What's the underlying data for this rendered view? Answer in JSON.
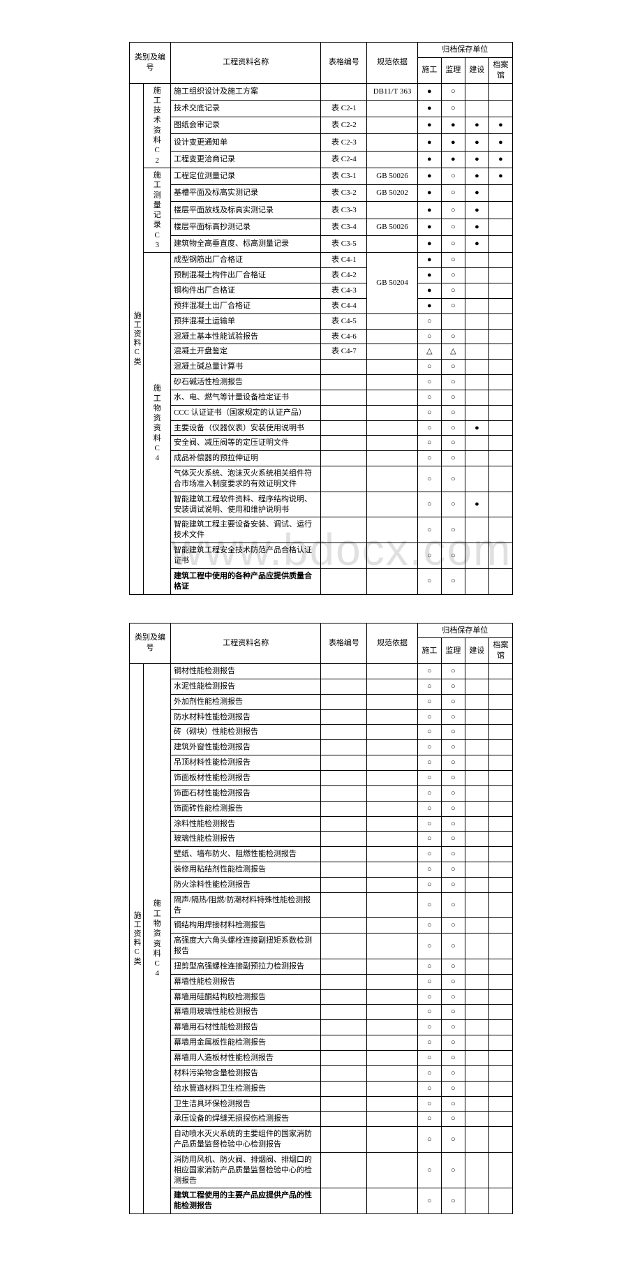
{
  "watermark": "www.bdocx.com",
  "marks": {
    "filled": "●",
    "hollow": "○",
    "tri": "△"
  },
  "headers": {
    "cat": "类别及编号",
    "name": "工程资料名称",
    "form": "表格编号",
    "basis": "规范依据",
    "archiveGroup": "归档保存单位",
    "units": [
      "施工",
      "监理",
      "建设",
      "档案馆"
    ]
  },
  "table1": {
    "mainCat": "施工资料C类",
    "groups": [
      {
        "side": "施工技术资料C2",
        "rows": [
          {
            "name": "施工组织设计及施工方案",
            "form": "",
            "basis": "DB11/T 363",
            "m": [
              "●",
              "○",
              "",
              ""
            ]
          },
          {
            "name": "技术交底记录",
            "form": "表 C2-1",
            "basis": "",
            "m": [
              "●",
              "○",
              "",
              ""
            ]
          },
          {
            "name": "图纸会审记录",
            "form": "表 C2-2",
            "basis": "",
            "m": [
              "●",
              "●",
              "●",
              "●"
            ]
          },
          {
            "name": "设计变更通知单",
            "form": "表 C2-3",
            "basis": "",
            "m": [
              "●",
              "●",
              "●",
              "●"
            ]
          },
          {
            "name": "工程变更洽商记录",
            "form": "表 C2-4",
            "basis": "",
            "m": [
              "●",
              "●",
              "●",
              "●"
            ]
          }
        ]
      },
      {
        "side": "施工测量记录C3",
        "rows": [
          {
            "name": "工程定位测量记录",
            "form": "表 C3-1",
            "basis": "GB 50026",
            "m": [
              "●",
              "○",
              "●",
              "●"
            ]
          },
          {
            "name": "基槽平面及标高实测记录",
            "form": "表 C3-2",
            "basis": "GB 50202",
            "m": [
              "●",
              "○",
              "●",
              ""
            ]
          },
          {
            "name": "楼层平面放线及标高实测记录",
            "form": "表 C3-3",
            "basis": "",
            "m": [
              "●",
              "○",
              "●",
              ""
            ]
          },
          {
            "name": "楼层平面标高抄测记录",
            "form": "表 C3-4",
            "basis": "GB 50026",
            "m": [
              "●",
              "○",
              "●",
              ""
            ]
          },
          {
            "name": "建筑物全高垂直度、标高测量记录",
            "form": "表 C3-5",
            "basis": "",
            "m": [
              "●",
              "○",
              "●",
              ""
            ]
          }
        ]
      },
      {
        "side": "施工物资资料C4",
        "rows": [
          {
            "name": "成型钢筋出厂合格证",
            "form": "表 C4-1",
            "basis": "",
            "basisSpan": 4,
            "basisVal": "GB 50204",
            "m": [
              "●",
              "○",
              "",
              ""
            ]
          },
          {
            "name": "预制混凝土构件出厂合格证",
            "form": "表 C4-2",
            "m": [
              "●",
              "○",
              "",
              ""
            ]
          },
          {
            "name": "钢构件出厂合格证",
            "form": "表 C4-3",
            "m": [
              "●",
              "○",
              "",
              ""
            ]
          },
          {
            "name": "预拌混凝土出厂合格证",
            "form": "表 C4-4",
            "m": [
              "●",
              "○",
              "",
              ""
            ]
          },
          {
            "name": "预拌混凝土运输单",
            "form": "表 C4-5",
            "basis": "",
            "m": [
              "○",
              "",
              "",
              ""
            ]
          },
          {
            "name": "混凝土基本性能试验报告",
            "form": "表 C4-6",
            "basis": "",
            "m": [
              "○",
              "○",
              "",
              ""
            ]
          },
          {
            "name": "混凝土开盘鉴定",
            "form": "表 C4-7",
            "basis": "",
            "m": [
              "△",
              "△",
              "",
              ""
            ]
          },
          {
            "name": "混凝土碱总量计算书",
            "form": "",
            "basis": "",
            "m": [
              "○",
              "○",
              "",
              ""
            ]
          },
          {
            "name": "砂石碱活性检测报告",
            "form": "",
            "basis": "",
            "m": [
              "○",
              "○",
              "",
              ""
            ]
          },
          {
            "name": "水、电、燃气等计量设备检定证书",
            "form": "",
            "basis": "",
            "m": [
              "○",
              "○",
              "",
              ""
            ]
          },
          {
            "name": "CCC 认证证书（国家规定的认证产品）",
            "form": "",
            "basis": "",
            "m": [
              "○",
              "○",
              "",
              ""
            ]
          },
          {
            "name": "主要设备（仪器仪表）安装使用说明书",
            "form": "",
            "basis": "",
            "m": [
              "○",
              "○",
              "●",
              ""
            ]
          },
          {
            "name": "安全阀、减压阀等的定压证明文件",
            "form": "",
            "basis": "",
            "m": [
              "○",
              "○",
              "",
              ""
            ]
          },
          {
            "name": "成品补偿器的预拉伸证明",
            "form": "",
            "basis": "",
            "m": [
              "○",
              "○",
              "",
              ""
            ]
          },
          {
            "name": "气体灭火系统、泡沫灭火系统相关组件符合市场准入制度要求的有效证明文件",
            "form": "",
            "basis": "",
            "m": [
              "○",
              "○",
              "",
              ""
            ]
          },
          {
            "name": "智能建筑工程软件资料、程序结构说明、安装调试说明、使用和维护说明书",
            "form": "",
            "basis": "",
            "m": [
              "○",
              "○",
              "●",
              ""
            ]
          },
          {
            "name": "智能建筑工程主要设备安装、调试、运行技术文件",
            "form": "",
            "basis": "",
            "m": [
              "○",
              "○",
              "",
              ""
            ]
          },
          {
            "name": "智能建筑工程安全技术防范产品合格认证证书",
            "form": "",
            "basis": "",
            "m": [
              "○",
              "○",
              "",
              ""
            ]
          },
          {
            "name": "建筑工程中使用的各种产品应提供质量合格证",
            "bold": true,
            "form": "",
            "basis": "",
            "m": [
              "○",
              "○",
              "",
              ""
            ]
          }
        ]
      }
    ]
  },
  "table2": {
    "mainCat": "施工资料C类",
    "side": "施工物资资料C4",
    "rows": [
      {
        "name": "钢材性能检测报告",
        "m": [
          "○",
          "○",
          "",
          ""
        ]
      },
      {
        "name": "水泥性能检测报告",
        "m": [
          "○",
          "○",
          "",
          ""
        ]
      },
      {
        "name": "外加剂性能检测报告",
        "m": [
          "○",
          "○",
          "",
          ""
        ]
      },
      {
        "name": "防水材料性能检测报告",
        "m": [
          "○",
          "○",
          "",
          ""
        ]
      },
      {
        "name": "砖（砌块）性能检测报告",
        "m": [
          "○",
          "○",
          "",
          ""
        ]
      },
      {
        "name": "建筑外窗性能检测报告",
        "m": [
          "○",
          "○",
          "",
          ""
        ]
      },
      {
        "name": "吊顶材料性能检测报告",
        "m": [
          "○",
          "○",
          "",
          ""
        ]
      },
      {
        "name": "饰面板材性能检测报告",
        "m": [
          "○",
          "○",
          "",
          ""
        ]
      },
      {
        "name": "饰面石材性能检测报告",
        "m": [
          "○",
          "○",
          "",
          ""
        ]
      },
      {
        "name": "饰面砖性能检测报告",
        "m": [
          "○",
          "○",
          "",
          ""
        ]
      },
      {
        "name": "涂料性能检测报告",
        "m": [
          "○",
          "○",
          "",
          ""
        ]
      },
      {
        "name": "玻璃性能检测报告",
        "m": [
          "○",
          "○",
          "",
          ""
        ]
      },
      {
        "name": "壁纸、墙布防火、阻燃性能检测报告",
        "m": [
          "○",
          "○",
          "",
          ""
        ]
      },
      {
        "name": "装修用粘结剂性能检测报告",
        "m": [
          "○",
          "○",
          "",
          ""
        ]
      },
      {
        "name": "防火涂料性能检测报告",
        "m": [
          "○",
          "○",
          "",
          ""
        ]
      },
      {
        "name": "隔声/隔热/阻燃/防潮材料特殊性能检测报告",
        "m": [
          "○",
          "○",
          "",
          ""
        ]
      },
      {
        "name": "钢结构用焊接材料检测报告",
        "m": [
          "○",
          "○",
          "",
          ""
        ]
      },
      {
        "name": "高强度大六角头螺栓连接副扭矩系数检测报告",
        "m": [
          "○",
          "○",
          "",
          ""
        ]
      },
      {
        "name": "扭剪型高强螺栓连接副预拉力检测报告",
        "m": [
          "○",
          "○",
          "",
          ""
        ]
      },
      {
        "name": "幕墙性能检测报告",
        "m": [
          "○",
          "○",
          "",
          ""
        ]
      },
      {
        "name": "幕墙用硅酮结构胶检测报告",
        "m": [
          "○",
          "○",
          "",
          ""
        ]
      },
      {
        "name": "幕墙用玻璃性能检测报告",
        "m": [
          "○",
          "○",
          "",
          ""
        ]
      },
      {
        "name": "幕墙用石材性能检测报告",
        "m": [
          "○",
          "○",
          "",
          ""
        ]
      },
      {
        "name": "幕墙用金属板性能检测报告",
        "m": [
          "○",
          "○",
          "",
          ""
        ]
      },
      {
        "name": "幕墙用人造板材性能检测报告",
        "m": [
          "○",
          "○",
          "",
          ""
        ]
      },
      {
        "name": "材料污染物含量检测报告",
        "m": [
          "○",
          "○",
          "",
          ""
        ]
      },
      {
        "name": "给水管道材料卫生检测报告",
        "m": [
          "○",
          "○",
          "",
          ""
        ]
      },
      {
        "name": "卫生洁具环保检测报告",
        "m": [
          "○",
          "○",
          "",
          ""
        ]
      },
      {
        "name": "承压设备的焊缝无损探伤检测报告",
        "m": [
          "○",
          "○",
          "",
          ""
        ]
      },
      {
        "name": "自动喷水灭火系统的主要组件的国家消防产品质量监督检验中心检测报告",
        "m": [
          "○",
          "○",
          "",
          ""
        ]
      },
      {
        "name": "消防用风机、防火阀、排烟阀、排烟口的相应国家消防产品质量监督检验中心的检测报告",
        "m": [
          "○",
          "○",
          "",
          ""
        ]
      },
      {
        "name": "建筑工程使用的主要产品应提供产品的性能检测报告",
        "bold": true,
        "m": [
          "○",
          "○",
          "",
          ""
        ]
      }
    ]
  }
}
